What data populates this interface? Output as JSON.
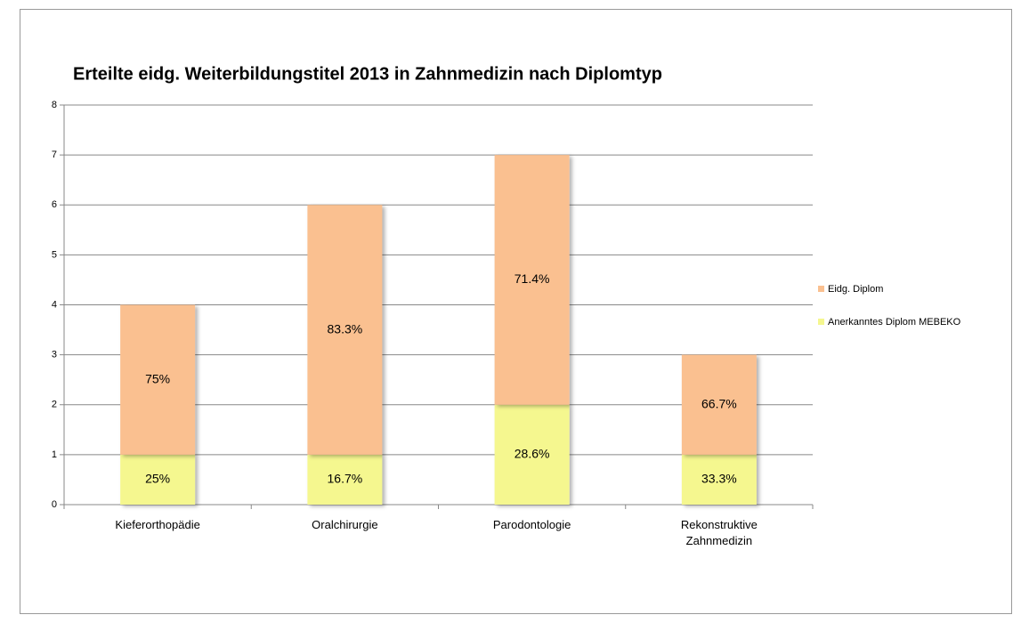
{
  "chart_data": {
    "type": "stacked_bar",
    "title": "Erteilte eidg. Weiterbildungstitel 2013 in Zahnmedizin nach Diplomtyp",
    "categories": [
      "Kieferorthopädie",
      "Oralchirurgie",
      "Parodontologie",
      "Rekonstruktive Zahnmedizin"
    ],
    "series": [
      {
        "name": "Anerkanntes Diplom MEBEKO",
        "color": "#f5f78f",
        "values": [
          1,
          1,
          2,
          1
        ],
        "data_labels": [
          "25%",
          "16.7%",
          "28.6%",
          "33.3%"
        ]
      },
      {
        "name": "Eidg. Diplom",
        "color": "#fac090",
        "values": [
          3,
          5,
          5,
          2
        ],
        "data_labels": [
          "75%",
          "83.3%",
          "71.4%",
          "66.7%"
        ]
      }
    ],
    "ylim": [
      0,
      8
    ],
    "yticks": [
      0,
      1,
      2,
      3,
      4,
      5,
      6,
      7,
      8
    ],
    "grid": true,
    "legend": "right"
  }
}
